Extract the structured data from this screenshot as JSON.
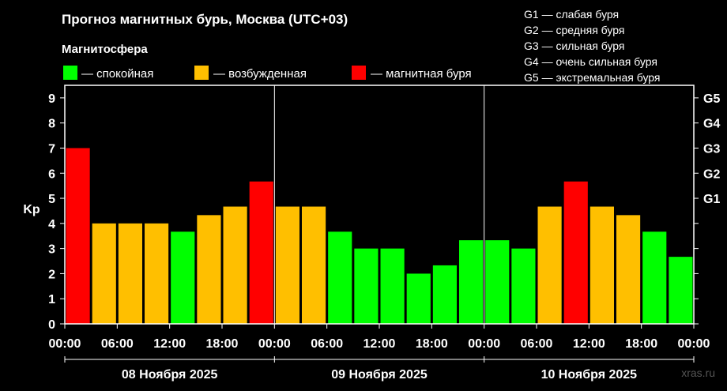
{
  "header": {
    "title": "Прогноз магнитных бурь, Москва (UTC+03)",
    "magnetosphere_title": "Магнитосфера"
  },
  "legend": {
    "quiet": "— спокойная",
    "excited": "— возбужденная",
    "storm": "— магнитная буря"
  },
  "g_scale": [
    "G1 — слабая буря",
    "G2 — средняя буря",
    "G3 — сильная буря",
    "G4 — очень сильная буря",
    "G5 — экстремальная буря"
  ],
  "watermark": "xras.ru",
  "colors": {
    "quiet": "#00ff00",
    "excited": "#ffbf00",
    "storm": "#ff0000",
    "background": "#000000",
    "axes": "#ffffff"
  },
  "chart_data": {
    "type": "bar",
    "title": "Прогноз магнитных бурь, Москва (UTC+03)",
    "ylabel": "Kp",
    "ylim": [
      0,
      9.5
    ],
    "yticks": [
      0,
      1,
      2,
      3,
      4,
      5,
      6,
      7,
      8,
      9
    ],
    "right_axis_ticks": [
      {
        "value": 5,
        "label": "G1"
      },
      {
        "value": 6,
        "label": "G2"
      },
      {
        "value": 7,
        "label": "G3"
      },
      {
        "value": 8,
        "label": "G4"
      },
      {
        "value": 9,
        "label": "G5"
      }
    ],
    "xtick_labels": [
      "00:00",
      "06:00",
      "12:00",
      "18:00",
      "00:00",
      "06:00",
      "12:00",
      "18:00",
      "00:00",
      "06:00",
      "12:00",
      "18:00",
      "00:00"
    ],
    "days": [
      "08 Ноября 2025",
      "09 Ноября 2025",
      "10 Ноября 2025"
    ],
    "interval_hours": 3,
    "values": [
      7.0,
      4.0,
      4.0,
      4.0,
      3.67,
      4.33,
      4.67,
      5.67,
      4.67,
      4.67,
      3.67,
      3.0,
      3.0,
      2.0,
      2.33,
      3.33,
      3.33,
      3.0,
      4.67,
      5.67,
      4.67,
      4.33,
      3.67,
      2.67
    ],
    "levels": [
      "storm",
      "excited",
      "excited",
      "excited",
      "quiet",
      "excited",
      "excited",
      "storm",
      "excited",
      "excited",
      "quiet",
      "quiet",
      "quiet",
      "quiet",
      "quiet",
      "quiet",
      "quiet",
      "quiet",
      "excited",
      "storm",
      "excited",
      "excited",
      "quiet",
      "quiet"
    ],
    "grid": false
  }
}
